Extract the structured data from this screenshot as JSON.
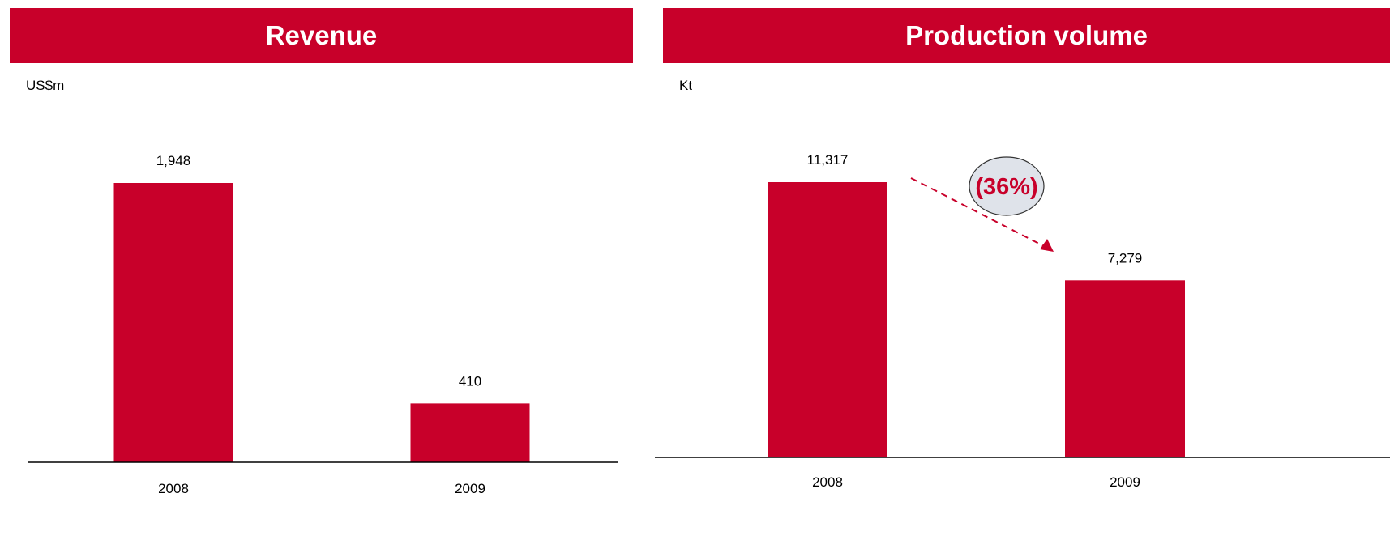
{
  "colors": {
    "bar": "#c8002a",
    "banner": "#c8002a",
    "axis": "#000000",
    "callout_fill": "#dfe3ea"
  },
  "chart_data": [
    {
      "type": "bar",
      "title": "Revenue",
      "unit": "US$m",
      "categories": [
        "2008",
        "2009"
      ],
      "values": [
        1948,
        410
      ],
      "value_labels": [
        "1,948",
        "410"
      ]
    },
    {
      "type": "bar",
      "title": "Production volume",
      "unit": "Kt",
      "categories": [
        "2008",
        "2009"
      ],
      "values": [
        11317,
        7279
      ],
      "value_labels": [
        "11,317",
        "7,279"
      ],
      "annotation": {
        "text": "(36%)",
        "from": "2008",
        "to": "2009"
      }
    }
  ]
}
